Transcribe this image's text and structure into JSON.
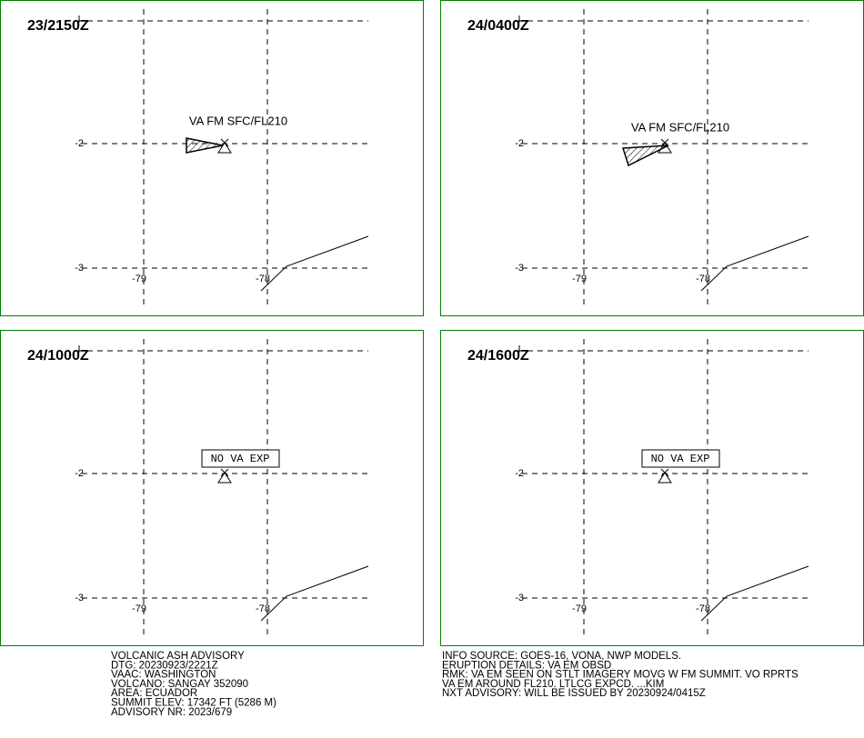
{
  "panels": [
    {
      "time": "23/2150Z",
      "label": "VA FM SFC/FL210"
    },
    {
      "time": "24/0400Z",
      "label": "VA FM SFC/FL210"
    },
    {
      "time": "24/1000Z",
      "label": "NO VA EXP"
    },
    {
      "time": "24/1600Z",
      "label": "NO VA EXP"
    }
  ],
  "grid": {
    "lat": [
      "-2",
      "-3"
    ],
    "lon": [
      "-79",
      "-78"
    ]
  },
  "advisory": {
    "left": [
      "VOLCANIC ASH ADVISORY",
      "DTG: 20230923/2221Z",
      "VAAC: WASHINGTON",
      "VOLCANO: SANGAY 352090",
      "AREA: ECUADOR",
      "SUMMIT ELEV: 17342 FT (5286 M)",
      "ADVISORY NR: 2023/679"
    ],
    "right": [
      "INFO SOURCE: GOES-16, VONA, NWP MODELS.",
      "ERUPTION DETAILS: VA EM OBSD",
      "RMK: VA EM SEEN ON STLT IMAGERY MOVG W FM SUMMIT. VO RPRTS",
      "VA EM AROUND FL210. LTLCG EXPCD. ...KIM",
      "NXT ADVISORY: WILL BE ISSUED BY 20230924/0415Z"
    ]
  }
}
